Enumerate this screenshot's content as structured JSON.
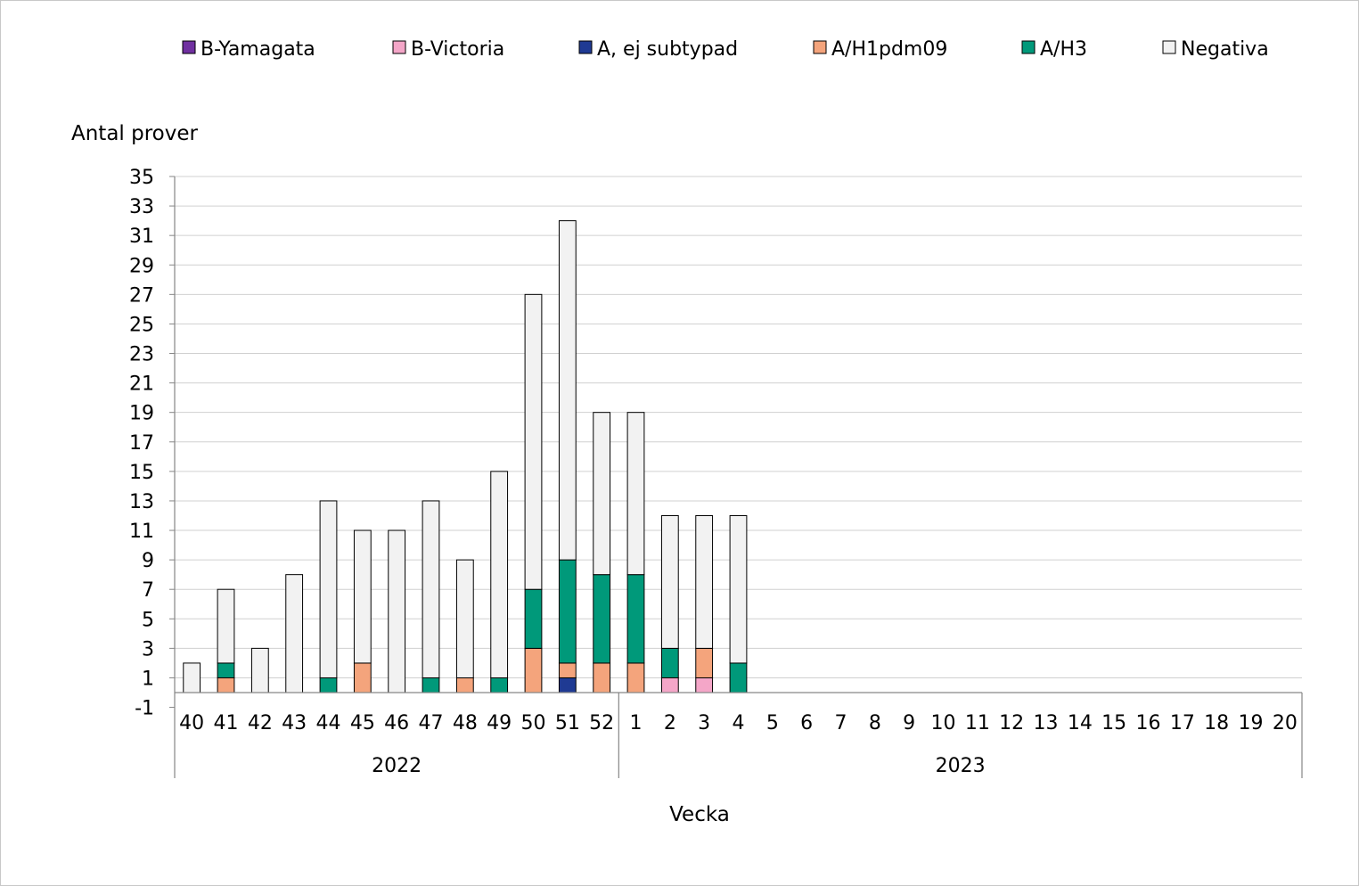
{
  "chart_data": {
    "type": "bar",
    "stacked": true,
    "title": "",
    "ylabel": "Antal prover",
    "xlabel": "Vecka",
    "ylim": [
      -1,
      35
    ],
    "yticks": [
      -1,
      1,
      3,
      5,
      7,
      9,
      11,
      13,
      15,
      17,
      19,
      21,
      23,
      25,
      27,
      29,
      31,
      33,
      35
    ],
    "grid": true,
    "legend_position": "top",
    "categories": [
      "40",
      "41",
      "42",
      "43",
      "44",
      "45",
      "46",
      "47",
      "48",
      "49",
      "50",
      "51",
      "52",
      "1",
      "2",
      "3",
      "4",
      "5",
      "6",
      "7",
      "8",
      "9",
      "10",
      "11",
      "12",
      "13",
      "14",
      "15",
      "16",
      "17",
      "18",
      "19",
      "20"
    ],
    "year_groups": [
      {
        "label": "2022",
        "count": 13
      },
      {
        "label": "2023",
        "count": 20
      }
    ],
    "series": [
      {
        "name": "B-Yamagata",
        "color": "#7030a0",
        "values": [
          0,
          0,
          0,
          0,
          0,
          0,
          0,
          0,
          0,
          0,
          0,
          0,
          0,
          0,
          0,
          0,
          0,
          null,
          null,
          null,
          null,
          null,
          null,
          null,
          null,
          null,
          null,
          null,
          null,
          null,
          null,
          null,
          null
        ]
      },
      {
        "name": "B-Victoria",
        "color": "#f4a6c8",
        "values": [
          0,
          0,
          0,
          0,
          0,
          0,
          0,
          0,
          0,
          0,
          0,
          0,
          0,
          0,
          1,
          1,
          0,
          null,
          null,
          null,
          null,
          null,
          null,
          null,
          null,
          null,
          null,
          null,
          null,
          null,
          null,
          null,
          null
        ]
      },
      {
        "name": "A, ej subtypad",
        "color": "#1f3a93",
        "values": [
          0,
          0,
          0,
          0,
          0,
          0,
          0,
          0,
          0,
          0,
          0,
          1,
          0,
          0,
          0,
          0,
          0,
          null,
          null,
          null,
          null,
          null,
          null,
          null,
          null,
          null,
          null,
          null,
          null,
          null,
          null,
          null,
          null
        ]
      },
      {
        "name": "A/H1pdm09",
        "color": "#f4a47c",
        "values": [
          0,
          1,
          0,
          0,
          0,
          2,
          0,
          0,
          1,
          0,
          3,
          1,
          2,
          2,
          0,
          2,
          0,
          null,
          null,
          null,
          null,
          null,
          null,
          null,
          null,
          null,
          null,
          null,
          null,
          null,
          null,
          null,
          null
        ]
      },
      {
        "name": "A/H3",
        "color": "#00997a",
        "values": [
          0,
          1,
          0,
          0,
          1,
          0,
          0,
          1,
          0,
          1,
          4,
          7,
          6,
          6,
          2,
          0,
          2,
          null,
          null,
          null,
          null,
          null,
          null,
          null,
          null,
          null,
          null,
          null,
          null,
          null,
          null,
          null,
          null
        ]
      },
      {
        "name": "Negativa",
        "color": "#f2f2f2",
        "values": [
          2,
          5,
          3,
          8,
          12,
          9,
          11,
          12,
          8,
          14,
          20,
          23,
          11,
          11,
          9,
          9,
          10,
          null,
          null,
          null,
          null,
          null,
          null,
          null,
          null,
          null,
          null,
          null,
          null,
          null,
          null,
          null,
          null
        ]
      }
    ]
  }
}
